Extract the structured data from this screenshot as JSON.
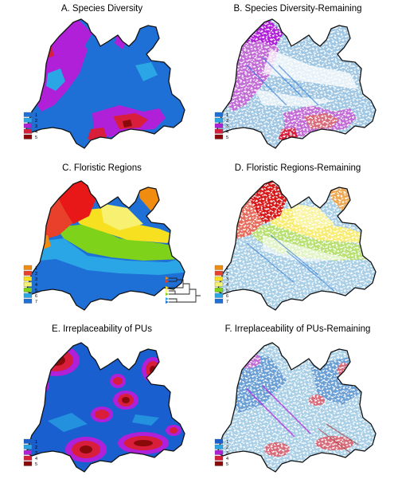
{
  "figure": {
    "panels": [
      {
        "id": "A",
        "title": "A. Species Diversity",
        "style": "full",
        "legend": [
          {
            "label": "1",
            "color": "#1e6fd6"
          },
          {
            "label": "2",
            "color": "#2aa6e6"
          },
          {
            "label": "3",
            "color": "#b020d8"
          },
          {
            "label": "4",
            "color": "#d81e3a"
          },
          {
            "label": "5",
            "color": "#8a0a0a"
          }
        ]
      },
      {
        "id": "B",
        "title": "B. Species Diversity-Remaining",
        "style": "remaining",
        "legend": [
          {
            "label": "1",
            "color": "#1e6fd6"
          },
          {
            "label": "2",
            "color": "#2aa6e6"
          },
          {
            "label": "3",
            "color": "#b020d8"
          },
          {
            "label": "4",
            "color": "#d81e3a"
          },
          {
            "label": "5",
            "color": "#8a0a0a"
          }
        ]
      },
      {
        "id": "C",
        "title": "C. Floristic Regions",
        "style": "full",
        "legend": [
          {
            "label": "1",
            "color": "#f08c10"
          },
          {
            "label": "2",
            "color": "#e8402a"
          },
          {
            "label": "3",
            "color": "#f6e020"
          },
          {
            "label": "4",
            "color": "#f7f070"
          },
          {
            "label": "5",
            "color": "#7ed21a"
          },
          {
            "label": "6",
            "color": "#2aa6e6"
          },
          {
            "label": "7",
            "color": "#1e6fd6"
          }
        ]
      },
      {
        "id": "D",
        "title": "D. Floristic Regions-Remaining",
        "style": "remaining",
        "legend": [
          {
            "label": "1",
            "color": "#f08c10"
          },
          {
            "label": "2",
            "color": "#e8402a"
          },
          {
            "label": "3",
            "color": "#f6e020"
          },
          {
            "label": "4",
            "color": "#f7f070"
          },
          {
            "label": "5",
            "color": "#7ed21a"
          },
          {
            "label": "6",
            "color": "#2aa6e6"
          },
          {
            "label": "7",
            "color": "#1e6fd6"
          }
        ]
      },
      {
        "id": "E",
        "title": "E. Irreplaceability of PUs",
        "style": "full",
        "legend": [
          {
            "label": "1",
            "color": "#1a5fd0"
          },
          {
            "label": "2",
            "color": "#2aa6e6"
          },
          {
            "label": "3",
            "color": "#b020d8"
          },
          {
            "label": "4",
            "color": "#d81e3a"
          },
          {
            "label": "5",
            "color": "#8a0a0a"
          }
        ]
      },
      {
        "id": "F",
        "title": "F. Irreplaceability of PUs-Remaining",
        "style": "remaining",
        "legend": [
          {
            "label": "1",
            "color": "#1a5fd0"
          },
          {
            "label": "2",
            "color": "#2aa6e6"
          },
          {
            "label": "3",
            "color": "#b020d8"
          },
          {
            "label": "4",
            "color": "#d81e3a"
          },
          {
            "label": "5",
            "color": "#8a0a0a"
          }
        ]
      }
    ],
    "dendrogram": {
      "leaf_colors": [
        "#f08c10",
        "#e8402a",
        "#f6e020",
        "#f7f070",
        "#7ed21a",
        "#2aa6e6",
        "#1e6fd6"
      ]
    }
  }
}
